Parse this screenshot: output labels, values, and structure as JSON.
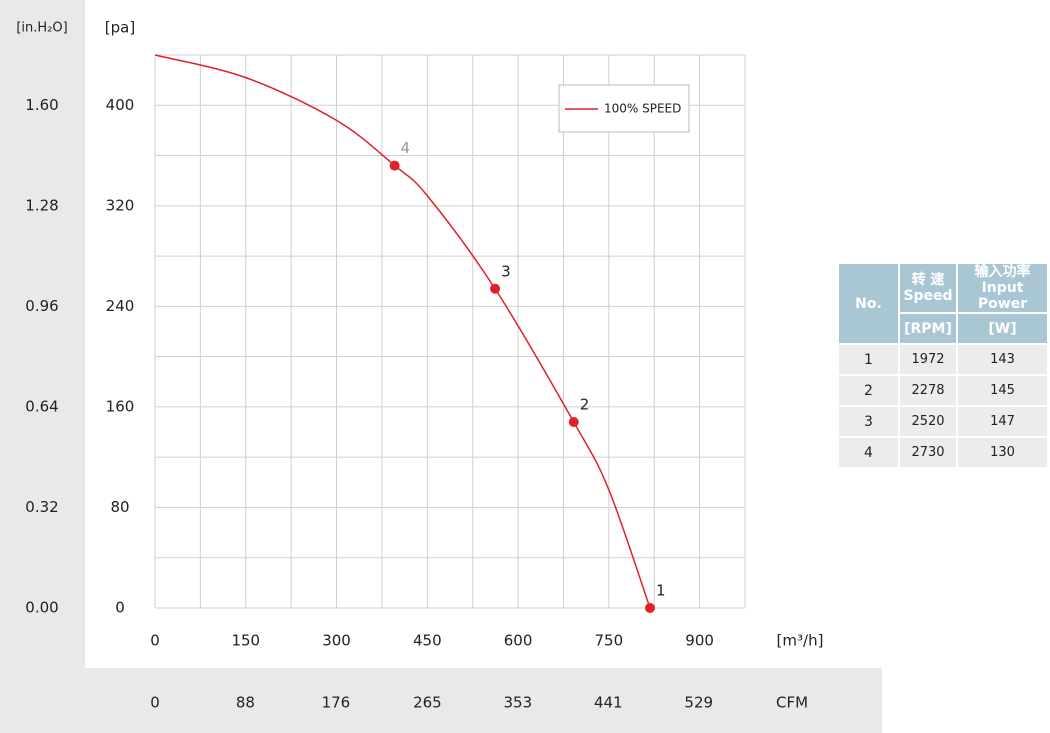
{
  "chart_data": {
    "type": "line",
    "y2_label": "[in.H₂O]",
    "y_label": "[pa]",
    "x_label": "[m³/h]",
    "x2_label": "CFM",
    "xlim": [
      0,
      975
    ],
    "xticks": [
      0,
      150,
      300,
      450,
      600,
      750,
      900
    ],
    "x_grid_step": 75,
    "ylim": [
      0,
      440
    ],
    "yticks": [
      0,
      80,
      160,
      240,
      320,
      400
    ],
    "y_grid_step": 40,
    "y2lim": [
      0,
      1.76
    ],
    "y2ticks": [
      {
        "value": 0,
        "label": "0.00"
      },
      {
        "value": 0.32,
        "label": "0.32"
      },
      {
        "value": 0.64,
        "label": "0.64"
      },
      {
        "value": 0.96,
        "label": "0.96"
      },
      {
        "value": 1.28,
        "label": "1.28"
      },
      {
        "value": 1.6,
        "label": "1.60"
      }
    ],
    "x2lim": [
      0,
      574
    ],
    "x2ticks": [
      0,
      88,
      176,
      265,
      353,
      441,
      529
    ],
    "grid": true,
    "legend": "top-right",
    "series": [
      {
        "name": "100% SPEED",
        "color": "#e0202a",
        "x": [
          0,
          150,
          300,
          396,
          450,
          562,
          692,
          750,
          818
        ],
        "values": [
          440,
          422,
          388,
          352,
          328,
          254,
          148,
          94,
          0
        ]
      }
    ],
    "points": {
      "color": "#e0202a",
      "x": [
        818,
        692,
        562,
        396
      ],
      "values": [
        0,
        148,
        254,
        352
      ],
      "labels": [
        "1",
        "2",
        "3",
        "4"
      ],
      "label_colors": [
        "#222222",
        "#222222",
        "#222222",
        "#999999"
      ]
    }
  },
  "table": {
    "header": {
      "no": "No.",
      "speed_cn": "转 速",
      "speed_en": "Speed",
      "power_cn": "输入功率",
      "power_en": "Input Power",
      "speed_unit": "[RPM]",
      "power_unit": "[W]"
    },
    "rows": [
      [
        1,
        1972,
        143
      ],
      [
        2,
        2278,
        145
      ],
      [
        3,
        2520,
        147
      ],
      [
        4,
        2730,
        130
      ]
    ]
  }
}
